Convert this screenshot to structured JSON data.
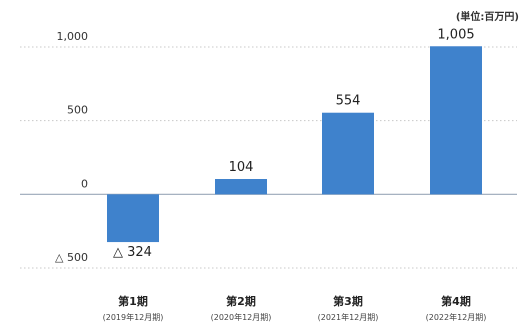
{
  "chart_data": {
    "type": "bar",
    "unit_label": "(単位:百万円)",
    "categories": [
      "第1期",
      "第2期",
      "第3期",
      "第4期"
    ],
    "periods": [
      "(2019年12月期)",
      "(2020年12月期)",
      "(2021年12月期)",
      "(2022年12月期)"
    ],
    "values": [
      -324,
      104,
      554,
      1005
    ],
    "value_labels": [
      "△ 324",
      "104",
      "554",
      "1,005"
    ],
    "y_ticks": [
      {
        "value": 1000,
        "label": "1,000"
      },
      {
        "value": 500,
        "label": "500"
      },
      {
        "value": 0,
        "label": "0"
      },
      {
        "value": -500,
        "label": "△ 500"
      }
    ],
    "ylim": [
      -500,
      1000
    ],
    "grid": "dotted",
    "bar_color": "#3f82cc",
    "axis_color": "#9aa7b8",
    "grid_color": "#c8c8c8"
  }
}
